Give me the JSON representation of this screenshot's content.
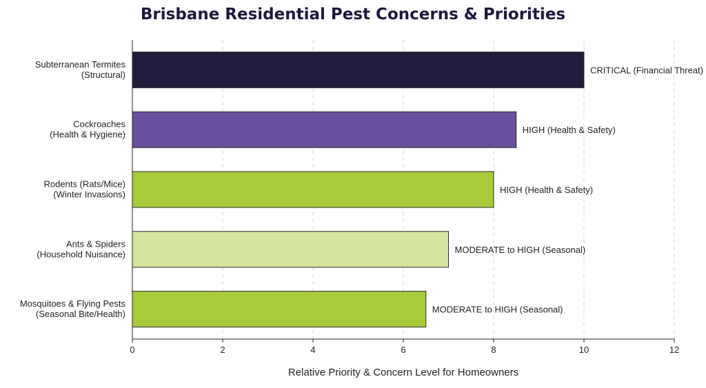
{
  "chart_data": {
    "type": "bar",
    "orientation": "horizontal",
    "title": "Brisbane Residential Pest Concerns & Priorities",
    "xlabel": "Relative Priority & Concern Level for Homeowners",
    "ylabel": "",
    "xlim": [
      0,
      12
    ],
    "xticks": [
      0,
      2,
      4,
      6,
      8,
      10,
      12
    ],
    "grid": "vertical dashed",
    "categories": [
      [
        "Subterranean Termites",
        "(Structural)"
      ],
      [
        "Cockroaches",
        "(Health & Hygiene)"
      ],
      [
        "Rodents (Rats/Mice)",
        "(Winter Invasions)"
      ],
      [
        "Ants & Spiders",
        "(Household Nuisance)"
      ],
      [
        "Mosquitoes & Flying Pests",
        "(Seasonal Bite/Health)"
      ]
    ],
    "values": [
      10,
      8.5,
      8,
      7,
      6.5
    ],
    "data_labels": [
      "CRITICAL (Financial Threat)",
      "HIGH (Health & Safety)",
      "HIGH (Health & Safety)",
      "MODERATE to HIGH (Seasonal)",
      "MODERATE to HIGH (Seasonal)"
    ],
    "colors": [
      "#231c3e",
      "#6a4f9e",
      "#a8cb3c",
      "#d5e59f",
      "#a8cb3c"
    ]
  }
}
